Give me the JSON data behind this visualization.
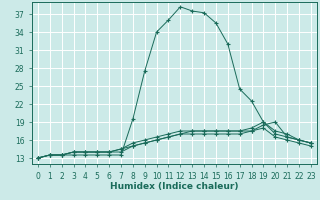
{
  "title": "",
  "xlabel": "Humidex (Indice chaleur)",
  "ylabel": "",
  "bg_color": "#cceae8",
  "line_color": "#1a6b5a",
  "grid_color": "#ffffff",
  "xlim": [
    -0.5,
    23.5
  ],
  "ylim": [
    12.0,
    39.0
  ],
  "yticks": [
    13,
    16,
    19,
    22,
    25,
    28,
    31,
    34,
    37
  ],
  "xticks": [
    0,
    1,
    2,
    3,
    4,
    5,
    6,
    7,
    8,
    9,
    10,
    11,
    12,
    13,
    14,
    15,
    16,
    17,
    18,
    19,
    20,
    21,
    22,
    23
  ],
  "series": [
    {
      "x": [
        0,
        1,
        2,
        3,
        4,
        5,
        6,
        7,
        8,
        9,
        10,
        11,
        12,
        13,
        14,
        15,
        16,
        17,
        18,
        19,
        20,
        21,
        22,
        23
      ],
      "y": [
        13,
        13.5,
        13.5,
        13.5,
        13.5,
        13.5,
        13.5,
        13.5,
        19.5,
        27.5,
        34,
        36,
        38.2,
        37.5,
        37.2,
        35.5,
        32,
        24.5,
        22.5,
        19.0,
        17.0,
        16.5,
        16.0,
        15.5
      ]
    },
    {
      "x": [
        0,
        1,
        2,
        3,
        4,
        5,
        6,
        7,
        8,
        9,
        10,
        11,
        12,
        13,
        14,
        15,
        16,
        17,
        18,
        19,
        20,
        21,
        22,
        23
      ],
      "y": [
        13,
        13.5,
        13.5,
        14.0,
        14.0,
        14.0,
        14.0,
        14.5,
        15.5,
        16.0,
        16.5,
        17.0,
        17.5,
        17.5,
        17.5,
        17.5,
        17.5,
        17.5,
        18.0,
        19.0,
        17.5,
        17.0,
        16.0,
        15.5
      ]
    },
    {
      "x": [
        0,
        1,
        2,
        3,
        4,
        5,
        6,
        7,
        8,
        9,
        10,
        11,
        12,
        13,
        14,
        15,
        16,
        17,
        18,
        19,
        20,
        21,
        22,
        23
      ],
      "y": [
        13,
        13.5,
        13.5,
        14.0,
        14.0,
        14.0,
        14.0,
        14.5,
        15.0,
        15.5,
        16.0,
        16.5,
        17.0,
        17.5,
        17.5,
        17.5,
        17.5,
        17.5,
        17.5,
        18.5,
        19.0,
        16.5,
        16.0,
        15.5
      ]
    },
    {
      "x": [
        0,
        1,
        2,
        3,
        4,
        5,
        6,
        7,
        8,
        9,
        10,
        11,
        12,
        13,
        14,
        15,
        16,
        17,
        18,
        19,
        20,
        21,
        22,
        23
      ],
      "y": [
        13,
        13.5,
        13.5,
        14.0,
        14.0,
        14.0,
        14.0,
        14.0,
        15.0,
        15.5,
        16.0,
        16.5,
        17.0,
        17.0,
        17.0,
        17.0,
        17.0,
        17.0,
        17.5,
        18.0,
        16.5,
        16.0,
        15.5,
        15.0
      ]
    }
  ],
  "tick_fontsize": 5.5,
  "xlabel_fontsize": 6.5
}
